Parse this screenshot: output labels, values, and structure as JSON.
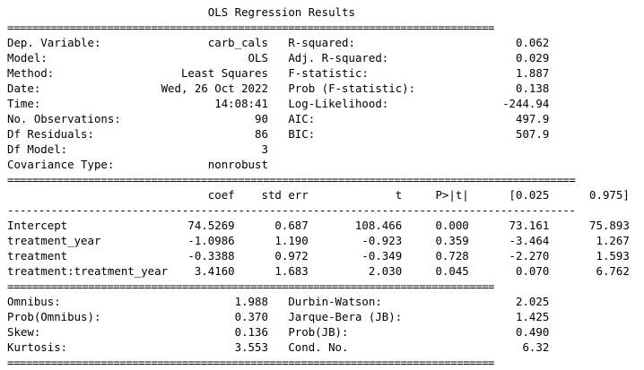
{
  "title": "OLS Regression Results",
  "separator_double": "==============================================================================",
  "separator_double_wide": "===========================================================================================",
  "separator_single": "-------------------------------------------------------------------------------------------",
  "summary": {
    "left": [
      {
        "label": "Dep. Variable:",
        "value": "carb_cals"
      },
      {
        "label": "Model:",
        "value": "OLS"
      },
      {
        "label": "Method:",
        "value": "Least Squares"
      },
      {
        "label": "Date:",
        "value": "Wed, 26 Oct 2022"
      },
      {
        "label": "Time:",
        "value": "14:08:41"
      },
      {
        "label": "No. Observations:",
        "value": "90"
      },
      {
        "label": "Df Residuals:",
        "value": "86"
      },
      {
        "label": "Df Model:",
        "value": "3"
      },
      {
        "label": "Covariance Type:",
        "value": "nonrobust"
      }
    ],
    "right": [
      {
        "label": "R-squared:",
        "value": "0.062"
      },
      {
        "label": "Adj. R-squared:",
        "value": "0.029"
      },
      {
        "label": "F-statistic:",
        "value": "1.887"
      },
      {
        "label": "Prob (F-statistic):",
        "value": "0.138"
      },
      {
        "label": "Log-Likelihood:",
        "value": "-244.94"
      },
      {
        "label": "AIC:",
        "value": "497.9"
      },
      {
        "label": "BIC:",
        "value": "507.9"
      }
    ]
  },
  "coef_table": {
    "headers": [
      "coef",
      "std err",
      "t",
      "P>|t|",
      "[0.025",
      "0.975]"
    ],
    "rows": [
      {
        "name": "Intercept",
        "values": [
          "74.5269",
          "0.687",
          "108.466",
          "0.000",
          "73.161",
          "75.893"
        ]
      },
      {
        "name": "treatment_year",
        "values": [
          "-1.0986",
          "1.190",
          "-0.923",
          "0.359",
          "-3.464",
          "1.267"
        ]
      },
      {
        "name": "treatment",
        "values": [
          "-0.3388",
          "0.972",
          "-0.349",
          "0.728",
          "-2.270",
          "1.593"
        ]
      },
      {
        "name": "treatment:treatment_year",
        "values": [
          "3.4160",
          "1.683",
          "2.030",
          "0.045",
          "0.070",
          "6.762"
        ]
      }
    ]
  },
  "diagnostics": {
    "left": [
      {
        "label": "Omnibus:",
        "value": "1.988"
      },
      {
        "label": "Prob(Omnibus):",
        "value": "0.370"
      },
      {
        "label": "Skew:",
        "value": "0.136"
      },
      {
        "label": "Kurtosis:",
        "value": "3.553"
      }
    ],
    "right": [
      {
        "label": "Durbin-Watson:",
        "value": "2.025"
      },
      {
        "label": "Jarque-Bera (JB):",
        "value": "1.425"
      },
      {
        "label": "Prob(JB):",
        "value": "0.490"
      },
      {
        "label": "Cond. No.",
        "value": "6.32"
      }
    ]
  }
}
